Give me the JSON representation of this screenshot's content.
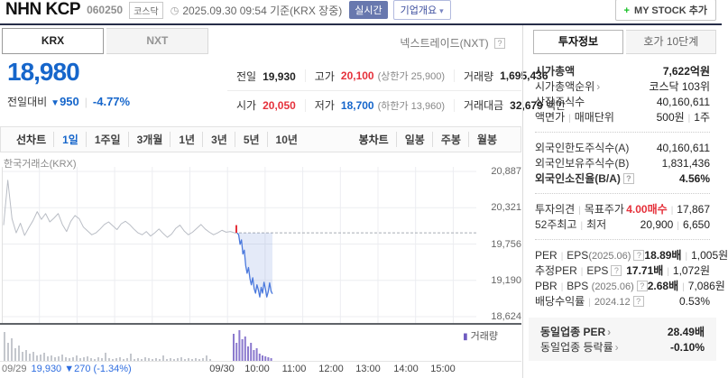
{
  "icons": {
    "divider": "|",
    "help": "?",
    "arrow": "›",
    "down_triangle": "▼",
    "plus": "+",
    "caret": "▾",
    "legend_bar": "▮",
    "clock": "◷"
  },
  "colors": {
    "down_blue": "#1666cb",
    "up_red": "#e5313b",
    "chart_blue": "#4b79dd",
    "chart_gray": "#b9bdc5",
    "volume_purple": "#8b7ace",
    "volume_gray": "#c4c7cd"
  },
  "header": {
    "stock_name": "NHN KCP",
    "stock_code": "060250",
    "market_badge": "코스닥",
    "datetime_info": "2025.09.30 09:54 기준(KRX 장중)",
    "realtime_badge": "실시간",
    "company_overview": "기업개요",
    "my_stock_label": "MY STOCK 추가"
  },
  "exchange_tabs": {
    "krx": "KRX",
    "nxt": "NXT",
    "nxt_info": "넥스트레이드(NXT)"
  },
  "price_summary": {
    "current_price": "18,980",
    "change_label": "전일대비",
    "change_value": "950",
    "change_percent": "-4.77%",
    "prev_label": "전일",
    "prev_value": "19,930",
    "high_label": "고가",
    "high_value": "20,100",
    "upper_limit": "(상한가 25,900)",
    "volume_label": "거래량",
    "volume_value": "1,695,436",
    "open_label": "시가",
    "open_value": "20,050",
    "low_label": "저가",
    "low_value": "18,700",
    "lower_limit": "(하한가 13,960)",
    "amount_label": "거래대금",
    "amount_value": "32,679",
    "amount_unit": "백만"
  },
  "chart_toolbar": {
    "line_chart_label": "선차트",
    "line_options": [
      "1일",
      "1주일",
      "3개월",
      "1년",
      "3년",
      "5년",
      "10년"
    ],
    "selected": "1일",
    "candle_chart_label": "봉차트",
    "candle_options": [
      "일봉",
      "주봉",
      "월봉"
    ]
  },
  "chart_data": {
    "type": "line",
    "title": "한국거래소(KRX)",
    "volume_legend": "거래량",
    "y_axis": {
      "ticks": [
        "20,887",
        "20,321",
        "19,756",
        "19,190",
        "18,624"
      ],
      "values": [
        20887,
        20321,
        19756,
        19190,
        18624
      ]
    },
    "x_axis": {
      "labels": [
        "09/30",
        "10:00",
        "11:00",
        "12:00",
        "13:00",
        "14:00",
        "15:00"
      ]
    },
    "prev_close": 19930,
    "prev_close_note": {
      "date": "09/29",
      "text": "19,930 ▼270 (-1.34%)"
    },
    "fill_color": "rgba(90,125,210,0.16)",
    "series": [
      {
        "name": "prev-day-price",
        "color": "#b9bdc5",
        "width": 1,
        "x_range": [
          2,
          258
        ],
        "values": [
          20050,
          20750,
          20150,
          19930,
          20080,
          19890,
          20010,
          20120,
          20260,
          20140,
          20230,
          20100,
          20160,
          20230,
          20060,
          19950,
          20110,
          20200,
          20150,
          20020,
          19960,
          19900,
          19930,
          19990,
          20060,
          20100,
          20040,
          19980,
          20070,
          20110,
          20060,
          19990,
          19930,
          19900,
          19950,
          19880,
          19930,
          19990,
          19920,
          19860,
          19910,
          20000,
          20050,
          19960,
          19900,
          19940,
          20000,
          20060,
          19990,
          19940,
          19900,
          19930,
          19970,
          19940,
          19950,
          19930
        ]
      },
      {
        "name": "open-tick",
        "color": "#e5313b",
        "width": 2,
        "x_range": [
          260,
          260
        ],
        "values": [
          20050,
          19930
        ]
      },
      {
        "name": "today-price",
        "color": "#4b79dd",
        "width": 1.3,
        "x_range": [
          261,
          300
        ],
        "fill_to_ref": true,
        "values": [
          19930,
          19900,
          19750,
          19820,
          19600,
          19660,
          19420,
          19300,
          19390,
          19220,
          19120,
          19230,
          19060,
          18990,
          19120,
          19040,
          18930,
          19080,
          18990,
          19160,
          19060,
          18930,
          19010,
          19150,
          19020,
          18980
        ]
      }
    ],
    "volume": [
      {
        "name": "prev-day-volume",
        "color": "#c4c7cd",
        "x_start": 2,
        "step": 4,
        "values": [
          32,
          20,
          25,
          14,
          17,
          10,
          12,
          8,
          10,
          6,
          7,
          9,
          5,
          6,
          4,
          5,
          7,
          4,
          3,
          4,
          6,
          3,
          4,
          5,
          3,
          2,
          4,
          3,
          9,
          3,
          2,
          3,
          4,
          2,
          3,
          8,
          2,
          3,
          2,
          4,
          3,
          2,
          3,
          2,
          6,
          2,
          3,
          2,
          3,
          4,
          2,
          3,
          2,
          3,
          2,
          3,
          6,
          2
        ]
      },
      {
        "name": "today-volume",
        "color": "#8b7ace",
        "x_start": 256,
        "step": 3.2,
        "values": [
          30,
          20,
          34,
          24,
          27,
          16,
          20,
          12,
          14,
          8,
          6,
          5,
          4,
          3
        ]
      }
    ]
  },
  "sidebar": {
    "tab_invest": "투자정보",
    "tab_hoga": "호가 10단계",
    "market_cap": {
      "label": "시가총액",
      "value": "7,622억원"
    },
    "market_cap_rank": {
      "label": "시가총액순위",
      "value": "코스닥 103위"
    },
    "shares_outstanding": {
      "label": "상장주식수",
      "value": "40,160,611"
    },
    "par_value": {
      "label": "액면가",
      "label2": "매매단위",
      "value": "500원",
      "value2": "1주"
    },
    "foreign_limit": {
      "label": "외국인한도주식수(A)",
      "value": "40,160,611"
    },
    "foreign_held": {
      "label": "외국인보유주식수(B)",
      "value": "1,831,436"
    },
    "foreign_ratio": {
      "label": "외국인소진율(B/A)",
      "value": "4.56%"
    },
    "opinion_target": {
      "label": "투자의견",
      "label2": "목표주가",
      "value": "4.00매수",
      "value2": "17,867"
    },
    "week52": {
      "label": "52주최고",
      "label2": "최저",
      "value": "20,900",
      "value2": "6,650"
    },
    "per_eps": {
      "label": "PER",
      "label2": "EPS",
      "suffix": "(2025.06)",
      "value": "18.89배",
      "value2": "1,005원"
    },
    "est_per_eps": {
      "label": "추정PER",
      "label2": "EPS",
      "value": "17.71배",
      "value2": "1,072원"
    },
    "pbr_bps": {
      "label": "PBR",
      "label2": "BPS",
      "suffix": "(2025.06)",
      "value": "2.68배",
      "value2": "7,086원"
    },
    "dividend": {
      "label": "배당수익률",
      "label2": "2024.12",
      "value": "0.53%"
    },
    "industry_per": {
      "label": "동일업종 PER",
      "value": "28.49배"
    },
    "industry_change": {
      "label": "동일업종 등락률",
      "value": "-0.10%"
    }
  }
}
